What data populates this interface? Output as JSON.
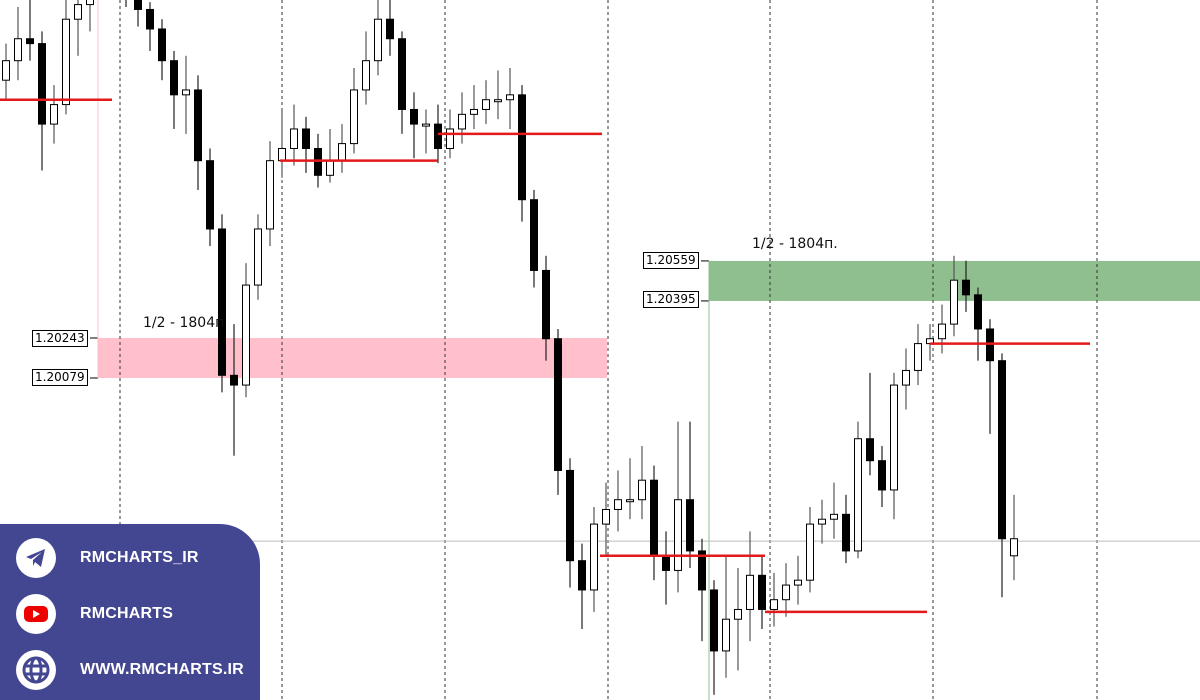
{
  "chart_data": {
    "type": "candlestick",
    "colors": {
      "bull_body": "#ffffff",
      "bear_body": "#000000",
      "level_line": "#e31a1a",
      "supply_zone": "#8fbf8f",
      "demand_zone": "#ffc0cb"
    },
    "candles": [
      [
        1.213,
        1.2145,
        1.2122,
        1.2138
      ],
      [
        1.2138,
        1.216,
        1.213,
        1.2147
      ],
      [
        1.2147,
        1.2165,
        1.2138,
        1.2145
      ],
      [
        1.2145,
        1.215,
        1.2093,
        1.2112
      ],
      [
        1.2112,
        1.2128,
        1.2104,
        1.212
      ],
      [
        1.212,
        1.217,
        1.2116,
        1.2155
      ],
      [
        1.2155,
        1.2175,
        1.214,
        1.2161
      ],
      [
        1.2161,
        1.218,
        1.215,
        1.2171
      ],
      [
        1.2171,
        1.2188,
        1.2165,
        1.2179
      ],
      [
        1.2179,
        1.2185,
        1.2168,
        1.2175
      ],
      [
        1.2175,
        1.2178,
        1.216,
        1.2167
      ],
      [
        1.2167,
        1.217,
        1.2152,
        1.2159
      ],
      [
        1.2159,
        1.2162,
        1.2142,
        1.2151
      ],
      [
        1.2151,
        1.2155,
        1.213,
        1.2138
      ],
      [
        1.2138,
        1.2142,
        1.211,
        1.2124
      ],
      [
        1.2124,
        1.214,
        1.2108,
        1.2126
      ],
      [
        1.2126,
        1.2132,
        1.2085,
        1.2097
      ],
      [
        1.2097,
        1.2102,
        1.2062,
        1.2069
      ],
      [
        1.2069,
        1.2075,
        1.2002,
        1.2009
      ],
      [
        1.2009,
        1.203,
        1.1976,
        1.2005
      ],
      [
        1.2005,
        1.2055,
        1.2,
        1.2046
      ],
      [
        1.2046,
        1.2075,
        1.204,
        1.2069
      ],
      [
        1.2069,
        1.2105,
        1.2062,
        1.2097
      ],
      [
        1.2097,
        1.2118,
        1.209,
        1.2102
      ],
      [
        1.2102,
        1.212,
        1.2095,
        1.211
      ],
      [
        1.211,
        1.2115,
        1.2092,
        1.2102
      ],
      [
        1.2102,
        1.2108,
        1.2086,
        1.2091
      ],
      [
        1.2091,
        1.211,
        1.2088,
        1.2097
      ],
      [
        1.2097,
        1.2112,
        1.2092,
        1.2104
      ],
      [
        1.2104,
        1.2135,
        1.21,
        1.2126
      ],
      [
        1.2126,
        1.215,
        1.212,
        1.2138
      ],
      [
        1.2138,
        1.217,
        1.2132,
        1.2155
      ],
      [
        1.2155,
        1.2165,
        1.214,
        1.2147
      ],
      [
        1.2147,
        1.215,
        1.2108,
        1.2118
      ],
      [
        1.2118,
        1.2125,
        1.2098,
        1.2112
      ],
      [
        1.2112,
        1.2118,
        1.21,
        1.2112
      ],
      [
        1.2112,
        1.212,
        1.2096,
        1.2102
      ],
      [
        1.2102,
        1.2118,
        1.2098,
        1.211
      ],
      [
        1.211,
        1.2125,
        1.2104,
        1.2116
      ],
      [
        1.2116,
        1.2128,
        1.211,
        1.2118
      ],
      [
        1.2118,
        1.213,
        1.2112,
        1.2122
      ],
      [
        1.2122,
        1.2134,
        1.2114,
        1.2122
      ],
      [
        1.2122,
        1.2135,
        1.211,
        1.2124
      ],
      [
        1.2124,
        1.2128,
        1.2072,
        1.2081
      ],
      [
        1.2081,
        1.2085,
        1.2045,
        1.2052
      ],
      [
        1.2052,
        1.2058,
        1.2015,
        1.2024
      ],
      [
        1.2024,
        1.2028,
        1.196,
        1.197
      ],
      [
        1.197,
        1.1975,
        1.1922,
        1.1933
      ],
      [
        1.1933,
        1.194,
        1.1905,
        1.1921
      ],
      [
        1.1921,
        1.1955,
        1.1912,
        1.1948
      ],
      [
        1.1948,
        1.1965,
        1.1935,
        1.1954
      ],
      [
        1.1954,
        1.197,
        1.1945,
        1.1958
      ],
      [
        1.1958,
        1.1975,
        1.195,
        1.1958
      ],
      [
        1.1958,
        1.198,
        1.195,
        1.1966
      ],
      [
        1.1966,
        1.1972,
        1.1925,
        1.1935
      ],
      [
        1.1935,
        1.1945,
        1.1915,
        1.1929
      ],
      [
        1.1929,
        1.199,
        1.192,
        1.1958
      ],
      [
        1.1958,
        1.199,
        1.193,
        1.1937
      ],
      [
        1.1937,
        1.1942,
        1.19,
        1.1921
      ],
      [
        1.1921,
        1.1925,
        1.1878,
        1.1896
      ],
      [
        1.1896,
        1.1935,
        1.1885,
        1.1909
      ],
      [
        1.1909,
        1.193,
        1.1888,
        1.1913
      ],
      [
        1.1913,
        1.1945,
        1.19,
        1.1927
      ],
      [
        1.1927,
        1.1935,
        1.1905,
        1.1913
      ],
      [
        1.1913,
        1.1928,
        1.1906,
        1.1917
      ],
      [
        1.1917,
        1.1932,
        1.191,
        1.1923
      ],
      [
        1.1923,
        1.1935,
        1.1915,
        1.1925
      ],
      [
        1.1925,
        1.1955,
        1.192,
        1.1948
      ],
      [
        1.1948,
        1.1958,
        1.194,
        1.195
      ],
      [
        1.195,
        1.1965,
        1.1942,
        1.1952
      ],
      [
        1.1952,
        1.196,
        1.1932,
        1.1937
      ],
      [
        1.1937,
        1.199,
        1.1934,
        1.1983
      ],
      [
        1.1983,
        1.201,
        1.1968,
        1.1974
      ],
      [
        1.1974,
        1.198,
        1.1955,
        1.1962
      ],
      [
        1.1962,
        1.201,
        1.195,
        1.2005
      ],
      [
        1.2005,
        1.202,
        1.1995,
        1.2011
      ],
      [
        1.2011,
        1.203,
        1.2005,
        1.2022
      ],
      [
        1.2022,
        1.203,
        1.2015,
        1.2024
      ],
      [
        1.2024,
        1.2038,
        1.2018,
        1.203
      ],
      [
        1.203,
        1.2058,
        1.2025,
        1.2048
      ],
      [
        1.2048,
        1.2056,
        1.2035,
        1.2042
      ],
      [
        1.2042,
        1.2045,
        1.2015,
        1.2028
      ],
      [
        1.2028,
        1.2032,
        1.1985,
        1.2015
      ],
      [
        1.2015,
        1.2018,
        1.1918,
        1.1942
      ],
      [
        1.1935,
        1.196,
        1.1925,
        1.1942
      ]
    ],
    "levels": [
      1.2122,
      1.2097,
      1.2108,
      1.1935,
      1.1912,
      1.2022
    ],
    "current_price_line": 1.1941,
    "zones": [
      {
        "kind": "demand",
        "top": "1.20243",
        "bottom": "1.20079",
        "label": "1/2 - 1804п"
      },
      {
        "kind": "supply",
        "top": "1.20559",
        "bottom": "1.20395",
        "label": "1/2 - 1804п."
      }
    ],
    "grid": "vertical dotted"
  },
  "social": {
    "items": [
      {
        "icon": "telegram-icon",
        "text": "RMCHARTS_IR"
      },
      {
        "icon": "youtube-icon",
        "text": "RMCHARTS"
      },
      {
        "icon": "globe-icon",
        "text": "WWW.RMCHARTS.IR"
      }
    ],
    "background": "#434690"
  }
}
